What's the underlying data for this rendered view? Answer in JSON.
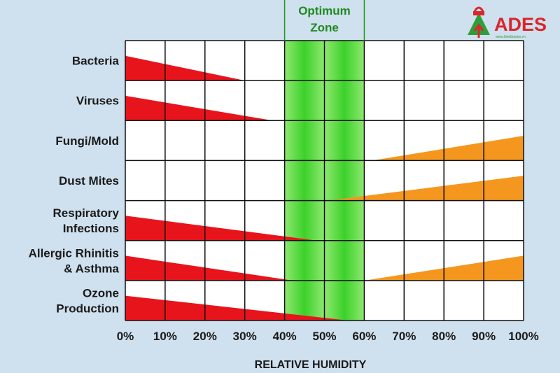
{
  "chart_data": {
    "type": "table",
    "xlabel": "RELATIVE HUMIDITY",
    "x_ticks": [
      "0%",
      "10%",
      "20%",
      "30%",
      "40%",
      "50%",
      "60%",
      "70%",
      "80%",
      "90%",
      "100%"
    ],
    "xlim": [
      0,
      100
    ],
    "optimum_zone": {
      "label_line1": "Optimum",
      "label_line2": "Zone",
      "range": [
        40,
        60
      ]
    },
    "rows": [
      {
        "label": [
          "Bacteria"
        ],
        "low": {
          "from": 0,
          "to": 30
        },
        "high": null
      },
      {
        "label": [
          "Viruses"
        ],
        "low": {
          "from": 0,
          "to": 37
        },
        "high": null
      },
      {
        "label": [
          "Fungi/Mold"
        ],
        "low": null,
        "high": {
          "from": 62,
          "to": 100
        }
      },
      {
        "label": [
          "Dust Mites"
        ],
        "low": null,
        "high": {
          "from": 51,
          "to": 100
        }
      },
      {
        "label": [
          "Respiratory",
          "Infections"
        ],
        "low": {
          "from": 0,
          "to": 48
        },
        "high": null
      },
      {
        "label": [
          "Allergic Rhinitis",
          "& Asthma"
        ],
        "low": {
          "from": 0,
          "to": 42
        },
        "high": {
          "from": 60,
          "to": 100
        }
      },
      {
        "label": [
          "Ozone",
          "Production"
        ],
        "low": {
          "from": 0,
          "to": 56
        },
        "high": null
      }
    ],
    "colors": {
      "low_effect": "#e8141c",
      "high_effect": "#f5961e",
      "optimum": "#3cd12a",
      "grid": "#111111",
      "background": "#cfe0ee"
    }
  },
  "logo": {
    "text": "ADES",
    "tagline": "www.thietbiades.vn",
    "color": "#d9262c",
    "accent": "#2e9e3a"
  }
}
